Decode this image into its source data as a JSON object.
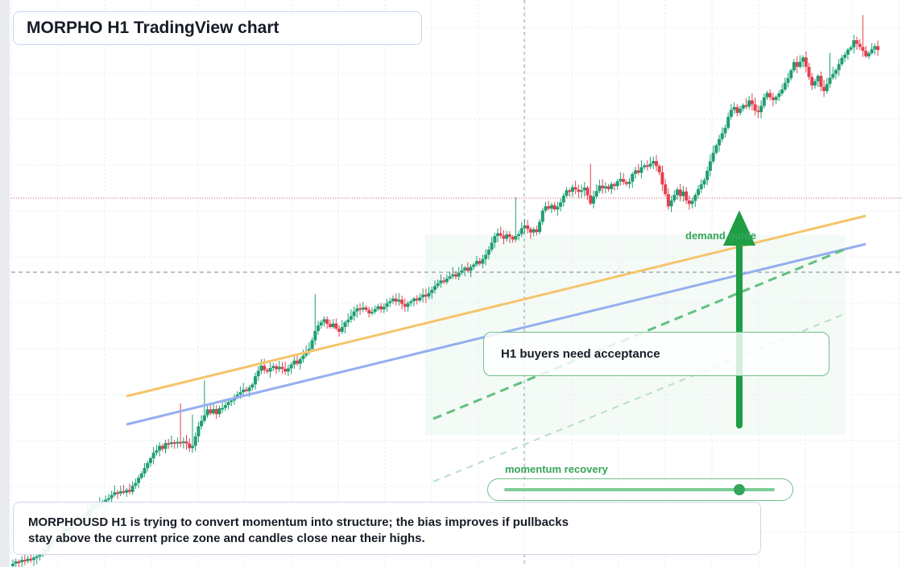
{
  "title": "MORPHO H1 TradingView chart",
  "callout": "H1 buyers need acceptance",
  "labels": {
    "demand": "demand guide",
    "momentum": "momentum recovery"
  },
  "description": {
    "line1": "MORPHOUSD H1 is trying to convert momentum into structure; the bias improves if pullbacks",
    "line2": "stay above the current price zone and candles close near their highs."
  },
  "momentum_slider": {
    "value": 0.87
  },
  "colors": {
    "up": "#1e9e74",
    "down": "#e6404f",
    "orange_line": "#f5c46b",
    "blue_line": "#94aef0",
    "green_accent": "#34a55a",
    "arrow": "#1f9e45"
  },
  "chart_data": {
    "type": "candlestick",
    "symbol": "MORPHOUSD",
    "timeframe": "H1",
    "candles_close_sequence": [
      1.0,
      1.6,
      1.4,
      2.0,
      1.7,
      2.3,
      2.0,
      2.6,
      2.9,
      3.3,
      3.9,
      4.6,
      6.0,
      6.7,
      7.2,
      7.8,
      8.3,
      9.3,
      10.0,
      10.4,
      10.9,
      11.4,
      11.7,
      12.7,
      13.1,
      14.4,
      15.1,
      16.0,
      16.2,
      16.6,
      16.9,
      17.4,
      17.8,
      18.6,
      19.3,
      19.0,
      19.6,
      19.2,
      19.9,
      19.4,
      21.0,
      21.7,
      23.0,
      24.1,
      25.5,
      26.8,
      28.0,
      29.4,
      30.0,
      31.2,
      30.4,
      31.9,
      31.7,
      32.1,
      31.8,
      32.2,
      31.9,
      32.3,
      31.8,
      30.6,
      31.2,
      33.6,
      36.2,
      37.6,
      39.0,
      40.5,
      39.5,
      40.6,
      39.3,
      40.8,
      40.9,
      41.6,
      42.4,
      42.8,
      43.6,
      44.3,
      44.9,
      45.6,
      45.2,
      46.1,
      46.9,
      49.0,
      50.4,
      51.7,
      50.6,
      50.2,
      51.1,
      51.6,
      50.8,
      51.4,
      50.9,
      50.2,
      51.0,
      52.0,
      53.0,
      52.2,
      53.4,
      54.3,
      55.2,
      56.0,
      58.2,
      60.6,
      62.0,
      62.8,
      63.6,
      62.4,
      61.6,
      62.5,
      61.2,
      60.4,
      61.6,
      62.8,
      63.5,
      64.4,
      65.6,
      66.4,
      66.1,
      66.6,
      66.0,
      65.1,
      65.5,
      66.2,
      66.9,
      66.1,
      66.8,
      67.7,
      68.2,
      68.9,
      68.1,
      68.6,
      67.5,
      66.8,
      67.7,
      68.2,
      68.9,
      68.4,
      69.2,
      69.9,
      69.4,
      70.3,
      71.1,
      72.1,
      72.8,
      73.5,
      73.1,
      74.0,
      74.6,
      75.1,
      74.5,
      75.5,
      76.1,
      76.8,
      76.0,
      77.0,
      77.6,
      78.5,
      77.8,
      79.0,
      80.1,
      81.4,
      83.2,
      84.9,
      85.6,
      85.0,
      84.2,
      85.3,
      84.7,
      84.0,
      84.9,
      85.4,
      86.9,
      87.6,
      86.7,
      85.8,
      86.6,
      85.9,
      88.5,
      91.4,
      92.5,
      91.9,
      92.8,
      91.7,
      92.4,
      93.5,
      95.2,
      96.6,
      96.2,
      97.4,
      96.8,
      96.2,
      96.6,
      97.3,
      95.3,
      93.2,
      95.0,
      96.4,
      97.8,
      97.1,
      97.6,
      96.9,
      98.2,
      97.7,
      98.9,
      99.5,
      98.7,
      98.2,
      98.8,
      100.8,
      101.7,
      101.1,
      102.5,
      103.0,
      102.7,
      103.4,
      104.1,
      102.8,
      101.2,
      98.1,
      95.6,
      92.5,
      94.0,
      95.4,
      96.8,
      95.1,
      96.3,
      94.0,
      93.1,
      93.9,
      95.4,
      96.9,
      98.1,
      99.2,
      101.6,
      104.0,
      106.2,
      108.1,
      109.7,
      111.2,
      112.6,
      115.4,
      117.2,
      117.9,
      116.4,
      117.5,
      118.4,
      118.0,
      119.6,
      118.6,
      117.0,
      116.6,
      118.2,
      120.4,
      121.5,
      120.4,
      119.7,
      120.5,
      121.4,
      122.4,
      124.1,
      125.3,
      127.3,
      129.4,
      128.2,
      129.5,
      130.6,
      128.2,
      125.6,
      123.4,
      124.5,
      125.9,
      123.1,
      122.0,
      123.8,
      125.4,
      126.4,
      127.4,
      128.9,
      130.5,
      131.3,
      132.6,
      133.2,
      135.0,
      134.1,
      133.3,
      132.3,
      130.9,
      131.7,
      132.7,
      133.5,
      132.5
    ],
    "trendlines": [
      {
        "color": "orange"
      },
      {
        "color": "blue"
      },
      {
        "color": "green",
        "style": "dashed"
      },
      {
        "color": "green",
        "style": "dashed-faint"
      }
    ],
    "grid": true,
    "crosshair": true
  }
}
